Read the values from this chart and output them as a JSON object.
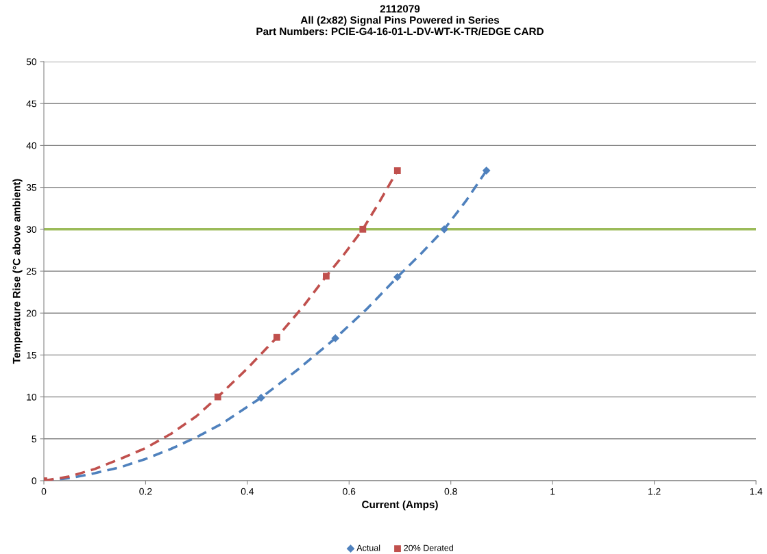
{
  "chart_data": {
    "type": "scatter",
    "title": "2112079\nAll (2x82) Signal Pins Powered in Series\nPart Numbers: PCIE-G4-16-01-L-DV-WT-K-TR/EDGE CARD",
    "xlabel": "Current (Amps)",
    "ylabel": "Temperature Rise (°C above ambient)",
    "series": [
      {
        "name": "Actual",
        "marker": "diamond",
        "color": "#4f81bd",
        "x": [
          0.427,
          0.573,
          0.695,
          0.787,
          0.87
        ],
        "values": [
          9.9,
          17,
          24.3,
          30,
          37
        ]
      },
      {
        "name": "20% Derated",
        "marker": "square",
        "color": "#c0504d",
        "x": [
          0,
          0.342,
          0.458,
          0.555,
          0.627,
          0.695
        ],
        "values": [
          0,
          10,
          17.1,
          24.4,
          30,
          37
        ]
      },
      {
        "type": "line",
        "line_style": "dashed",
        "color": "#4f81bd",
        "x": [
          0,
          0.05,
          0.1,
          0.15,
          0.2,
          0.25,
          0.3,
          0.35,
          0.427,
          0.5,
          0.573,
          0.635,
          0.695,
          0.74,
          0.787,
          0.83,
          0.87
        ],
        "values": [
          0,
          0.3,
          0.9,
          1.6,
          2.6,
          3.8,
          5.2,
          6.8,
          9.9,
          13.3,
          17,
          20.5,
          24.3,
          27,
          30,
          33.4,
          37
        ]
      },
      {
        "type": "line",
        "line_style": "dashed",
        "color": "#c0504d",
        "x": [
          0,
          0.05,
          0.1,
          0.15,
          0.2,
          0.25,
          0.3,
          0.342,
          0.4,
          0.458,
          0.51,
          0.555,
          0.59,
          0.627,
          0.66,
          0.695
        ],
        "values": [
          0,
          0.5,
          1.4,
          2.6,
          3.9,
          5.6,
          7.7,
          10,
          13.4,
          17.1,
          20.8,
          24.4,
          27,
          30,
          33.3,
          37
        ]
      }
    ],
    "ref_lines": [
      {
        "axis": "y",
        "value": 30,
        "color": "#9bbb59"
      }
    ],
    "xlim": [
      0,
      1.4
    ],
    "xticks": [
      0,
      0.2,
      0.4,
      0.6,
      0.8,
      1,
      1.2,
      1.4
    ],
    "ylim": [
      0,
      50
    ],
    "yticks": [
      0,
      5,
      10,
      15,
      20,
      25,
      30,
      35,
      40,
      45,
      50
    ],
    "grid": "y",
    "legend": "bottom"
  }
}
